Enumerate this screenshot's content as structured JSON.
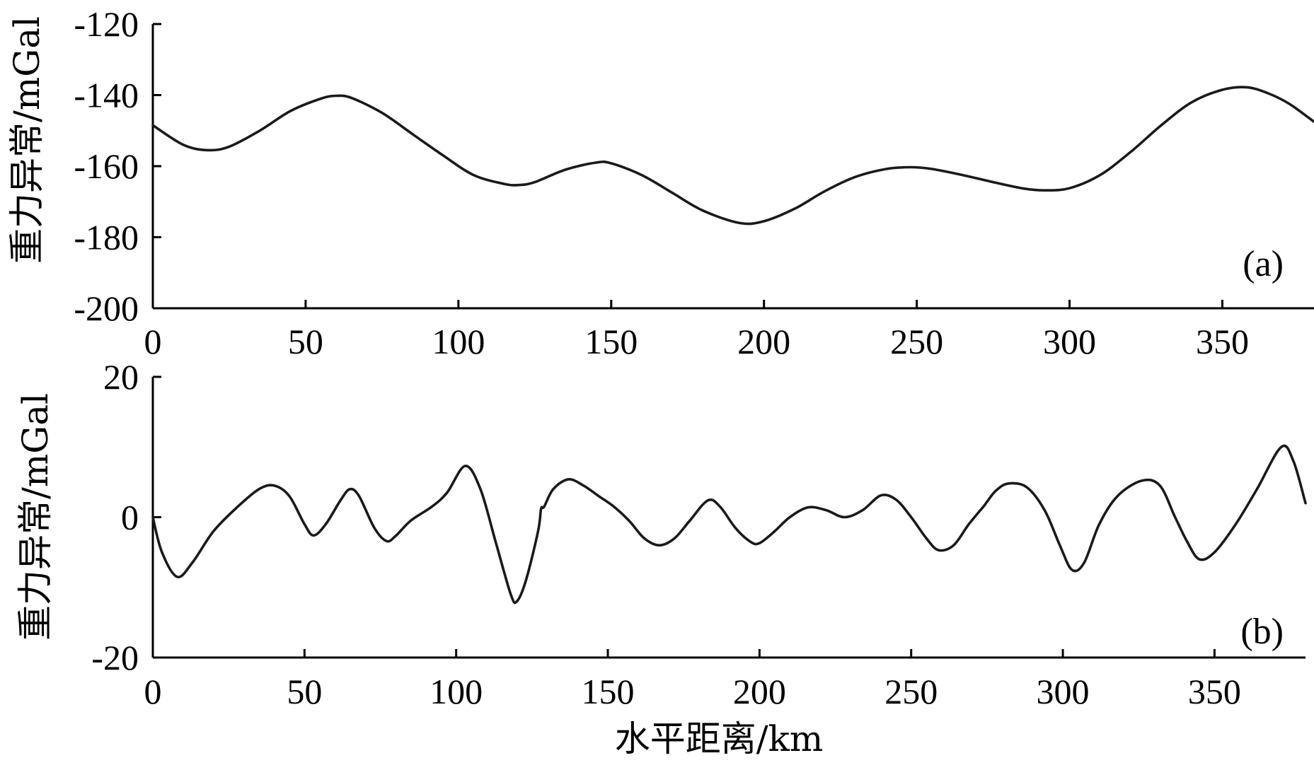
{
  "chart_data": [
    {
      "type": "line",
      "panel_label": "(a)",
      "xlabel": "",
      "ylabel": "重力异常/mGal",
      "xlim": [
        0,
        380
      ],
      "ylim": [
        -200,
        -120
      ],
      "xticks": [
        0,
        50,
        100,
        150,
        200,
        250,
        300,
        350
      ],
      "yticks": [
        -120,
        -140,
        -160,
        -180,
        -200
      ],
      "line_color": "#1a1a1a",
      "series": [
        {
          "x": [
            0,
            10,
            18,
            25,
            35,
            45,
            55,
            60,
            65,
            75,
            85,
            95,
            105,
            115,
            120,
            125,
            135,
            145,
            150,
            160,
            170,
            180,
            192,
            200,
            210,
            220,
            230,
            240,
            248,
            255,
            265,
            275,
            285,
            292,
            300,
            310,
            320,
            330,
            340,
            350,
            358,
            365,
            372,
            380
          ],
          "y": [
            -148.5,
            -154,
            -155.5,
            -154.5,
            -150,
            -144.5,
            -141,
            -140.2,
            -140.8,
            -145,
            -151,
            -157,
            -162.5,
            -165,
            -165.3,
            -164.5,
            -161,
            -159,
            -159.2,
            -162.5,
            -167.5,
            -172.5,
            -176,
            -175.5,
            -172,
            -167,
            -163,
            -160.8,
            -160.3,
            -160.8,
            -162.5,
            -164.5,
            -166.3,
            -166.8,
            -166.2,
            -162.5,
            -156,
            -148.5,
            -142,
            -138.5,
            -137.8,
            -139.5,
            -142.5,
            -147.5
          ]
        }
      ]
    },
    {
      "type": "line",
      "panel_label": "(b)",
      "xlabel": "水平距离/km",
      "ylabel": "重力异常/mGal",
      "xlim": [
        0,
        380
      ],
      "ylim": [
        -20,
        20
      ],
      "xticks": [
        0,
        50,
        100,
        150,
        200,
        250,
        300,
        350
      ],
      "yticks": [
        20,
        0,
        -20
      ],
      "line_color": "#1a1a1a",
      "series": [
        {
          "x": [
            0,
            3,
            8,
            13,
            20,
            28,
            35,
            40,
            45,
            50,
            53,
            57,
            62,
            65,
            68,
            73,
            77,
            80,
            85,
            92,
            97,
            103,
            108,
            113,
            118,
            120,
            123,
            127,
            128,
            129,
            132,
            137,
            142,
            147,
            152,
            157,
            162,
            167,
            172,
            177,
            183,
            187,
            192,
            197,
            200,
            205,
            210,
            216,
            222,
            228,
            234,
            240,
            245,
            250,
            255,
            259,
            264,
            269,
            274,
            275,
            278,
            282,
            288,
            294,
            299,
            303,
            307,
            312,
            318,
            326,
            332,
            337,
            341,
            345,
            350,
            357,
            364,
            372,
            376,
            380
          ],
          "y": [
            0,
            -5,
            -8.5,
            -6.5,
            -2,
            1.5,
            4,
            4.5,
            3,
            -1,
            -2.6,
            -1,
            2.5,
            4,
            3,
            -1.5,
            -3.4,
            -2.7,
            -0.5,
            1.5,
            3.5,
            7.3,
            4,
            -3.5,
            -11,
            -12,
            -9,
            -2,
            1.2,
            1.5,
            4,
            5.4,
            4.5,
            3,
            1.5,
            -0.5,
            -3,
            -4,
            -3,
            -0.5,
            2.4,
            1.5,
            -1.5,
            -3.5,
            -3.7,
            -2,
            0,
            1.4,
            1,
            0,
            1,
            3.1,
            2.5,
            0,
            -3,
            -4.7,
            -4,
            -1,
            1.6,
            2.2,
            3.8,
            4.8,
            4.3,
            1,
            -4,
            -7.5,
            -6.5,
            -1,
            3,
            5.2,
            4.5,
            0,
            -3.5,
            -6,
            -5,
            -1,
            4,
            10,
            8,
            2
          ]
        }
      ]
    }
  ]
}
